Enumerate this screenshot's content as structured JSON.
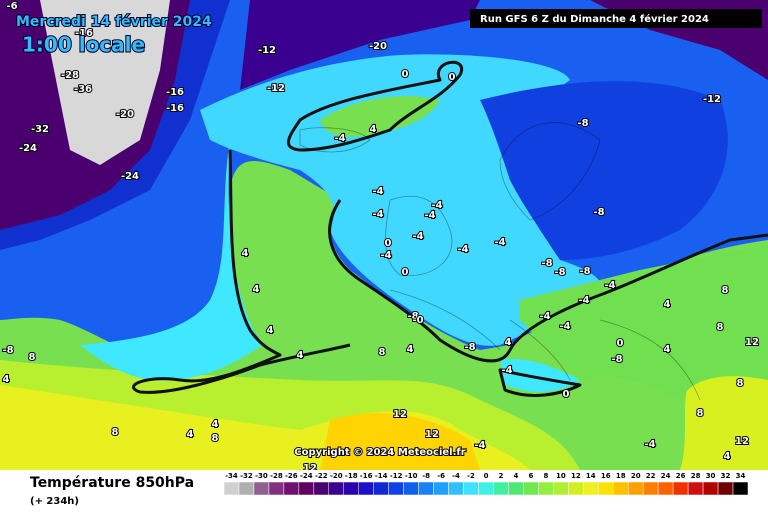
{
  "header": {
    "date": "Mercredi 14 février 2024",
    "time": "1:00 locale",
    "run": "Run GFS 6 Z du Dimanche 4 février 2024",
    "copyright": "Copyright © 2024 Meteociel.fr"
  },
  "footer": {
    "title": "Température 850hPa",
    "lead": "(+ 234h)"
  },
  "legend": {
    "ticks": [
      -34,
      -32,
      -30,
      -28,
      -26,
      -24,
      -22,
      -20,
      -18,
      -16,
      -14,
      -12,
      -10,
      -8,
      -6,
      -4,
      -2,
      0,
      2,
      4,
      6,
      8,
      10,
      12,
      14,
      16,
      18,
      20,
      22,
      24,
      26,
      28,
      30,
      32,
      34
    ],
    "colors": [
      "#d0d0d0",
      "#b0b0b0",
      "#906090",
      "#803080",
      "#701070",
      "#600060",
      "#4b0070",
      "#3a0090",
      "#2a00b0",
      "#1a10c8",
      "#1028d8",
      "#1040e8",
      "#1060f0",
      "#1a80f8",
      "#20a0ff",
      "#30c0ff",
      "#40e0ff",
      "#40f0e0",
      "#40f0a0",
      "#50e870",
      "#70e850",
      "#90f040",
      "#b0f030",
      "#d0f020",
      "#f0f020",
      "#ffe000",
      "#ffc000",
      "#ffa000",
      "#ff8000",
      "#ff6000",
      "#f03000",
      "#d01010",
      "#b00000",
      "#700000",
      "#000000"
    ]
  },
  "contour_labels": [
    "0",
    "0",
    "4",
    "-4",
    "4",
    "4",
    "4",
    "4",
    "8",
    "4",
    "-8",
    "8",
    "4",
    "8",
    "4",
    "4",
    "8",
    "12",
    "12",
    "12",
    "-4",
    "-4",
    "0",
    "-4",
    "0",
    "-4",
    "-4",
    "-4",
    "-4",
    "-4",
    "-8",
    "-0",
    "-8",
    "4",
    "-4",
    "0",
    "-8",
    "-8",
    "-8",
    "-8",
    "-8",
    "-12",
    "-4",
    "-4",
    "-4",
    "-4",
    "0",
    "4",
    "4",
    "8",
    "8",
    "12",
    "8",
    "8",
    "12",
    "-4",
    "4",
    "-4",
    "-8",
    "-20",
    "-12",
    "-12",
    "-24",
    "-24",
    "-32",
    "-28",
    "-36",
    "-20",
    "-16",
    "-16",
    "-16",
    "-6"
  ]
}
